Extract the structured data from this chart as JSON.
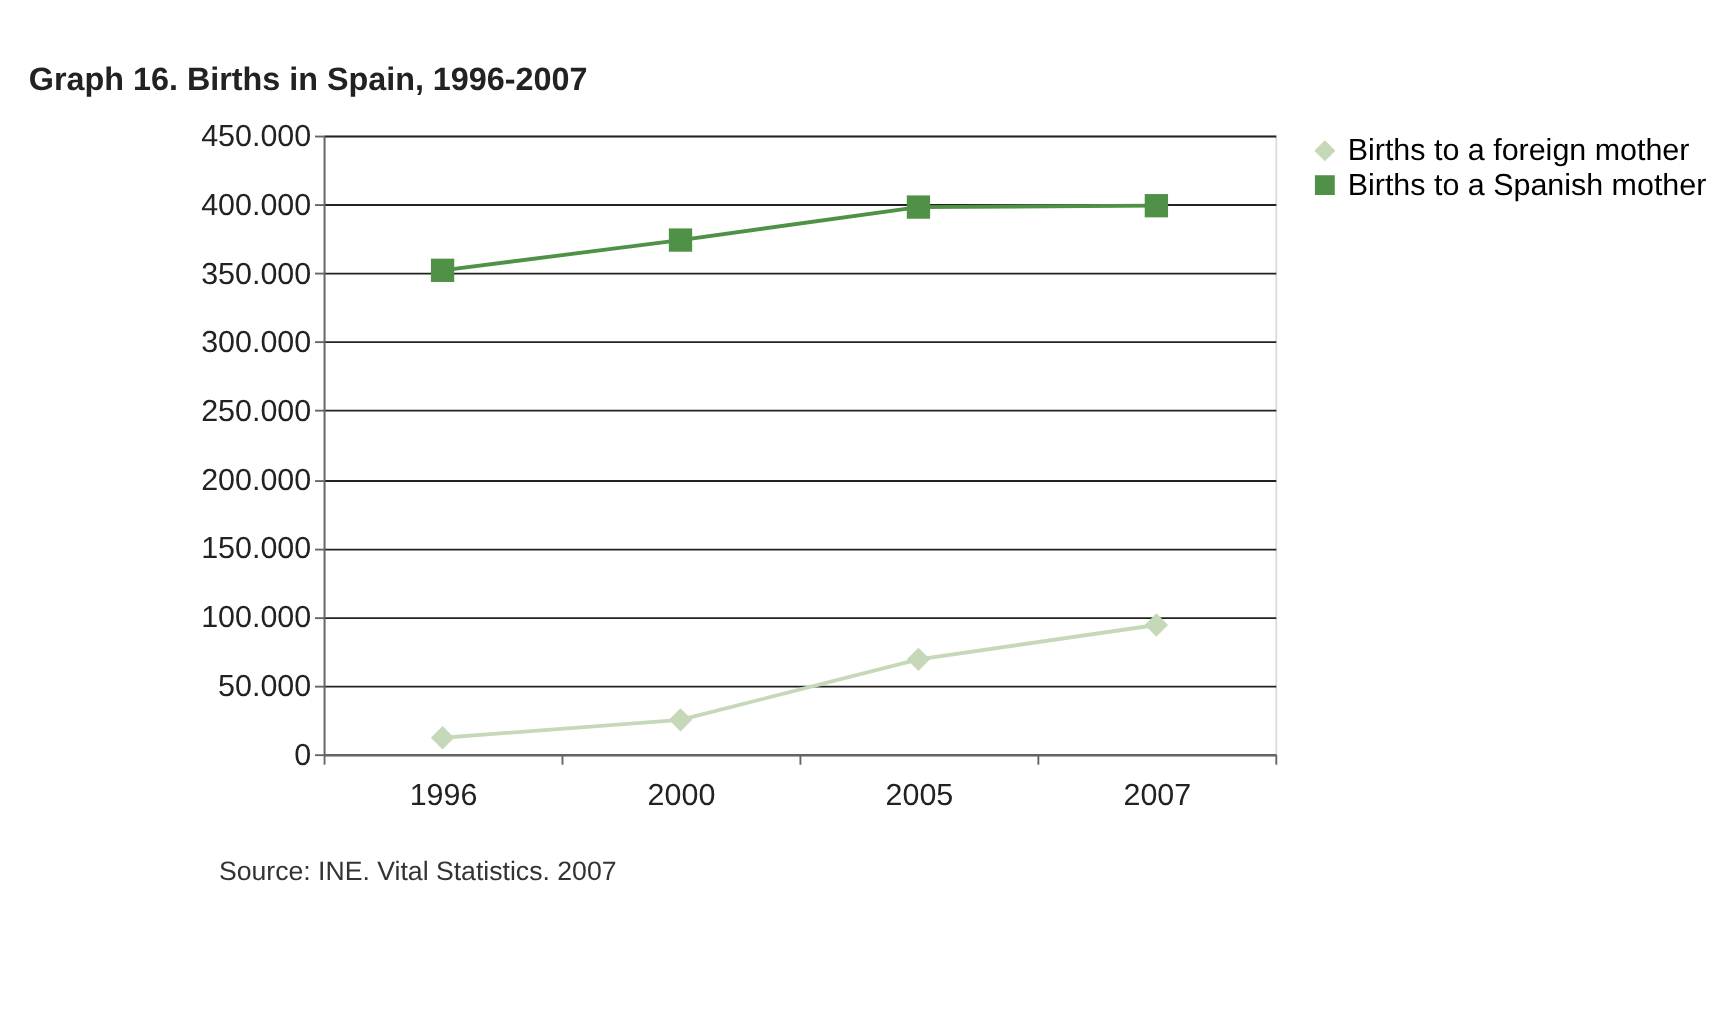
{
  "chart_data": {
    "type": "line",
    "title": "Graph 16. Births in Spain, 1996-2007",
    "categories": [
      "1996",
      "2000",
      "2005",
      "2007"
    ],
    "series": [
      {
        "name": "Births to a foreign mother",
        "color": "#c5d9b8",
        "marker": "diamond",
        "values": [
          12000,
          25000,
          69000,
          94000
        ]
      },
      {
        "name": "Births to a Spanish mother",
        "color": "#4e9147",
        "marker": "square",
        "values": [
          352000,
          374000,
          398000,
          399000
        ]
      }
    ],
    "ylim": [
      0,
      450000
    ],
    "yticks": [
      0,
      {
        "value": 50000,
        "label": "50.000"
      },
      {
        "value": 100000,
        "label": "100.000"
      },
      {
        "value": 150000,
        "label": "150.000"
      },
      {
        "value": 200000,
        "label": "200.000"
      },
      {
        "value": 250000,
        "label": "250.000"
      },
      {
        "value": 300000,
        "label": "300.000"
      },
      {
        "value": 350000,
        "label": "350.000"
      },
      {
        "value": 400000,
        "label": "400.000"
      },
      {
        "value": 450000,
        "label": "450.000"
      }
    ],
    "grid": "y",
    "legend": "right",
    "line_style": "solid",
    "annotations": [
      "Source: INE. Vital Statistics. 2007"
    ]
  }
}
